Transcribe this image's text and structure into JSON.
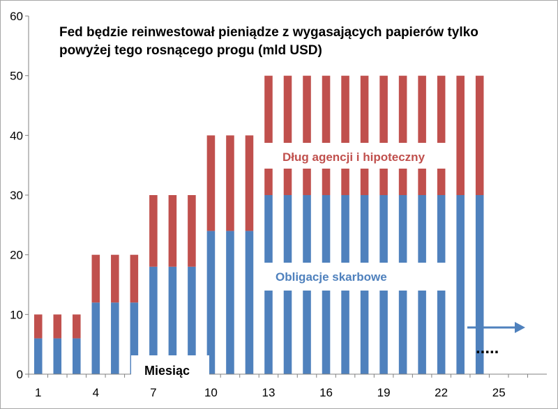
{
  "chart_data": {
    "type": "bar",
    "stacked": true,
    "title_line1": "Fed będzie reinwestował pieniądze z wygasających papierów tylko",
    "title_line2": "powyżej tego rosnącego progu  (mld USD)",
    "x": [
      1,
      2,
      3,
      4,
      5,
      6,
      7,
      8,
      9,
      10,
      11,
      12,
      13,
      14,
      15,
      16,
      17,
      18,
      19,
      20,
      21,
      22,
      23,
      24
    ],
    "x_ticks": [
      1,
      4,
      7,
      10,
      13,
      16,
      19,
      22,
      25
    ],
    "xlim": [
      0.5,
      27.5
    ],
    "ylim": [
      0,
      60
    ],
    "y_ticks": [
      0,
      10,
      20,
      30,
      40,
      50,
      60
    ],
    "grid": false,
    "legend": "none",
    "series": [
      {
        "name": "Obligacje skarbowe",
        "color": "#4f81bd",
        "values": [
          6,
          6,
          6,
          12,
          12,
          12,
          18,
          18,
          18,
          24,
          24,
          24,
          30,
          30,
          30,
          30,
          30,
          30,
          30,
          30,
          30,
          30,
          30,
          30
        ]
      },
      {
        "name": "Dług agencji i hipoteczny",
        "color": "#c0504d",
        "values": [
          4,
          4,
          4,
          8,
          8,
          8,
          12,
          12,
          12,
          16,
          16,
          16,
          20,
          20,
          20,
          20,
          20,
          20,
          20,
          20,
          20,
          20,
          20,
          20
        ]
      }
    ],
    "annotations": {
      "red_label": "Dług agencji i hipoteczny",
      "blue_label": "Obligacje skarbowe",
      "xaxis_label": "Miesiąc",
      "dots": "....."
    },
    "colors": {
      "red_text": "#c0504d",
      "blue_text": "#4f81bd",
      "arrow": "#4f81bd",
      "axis": "#808080"
    }
  }
}
